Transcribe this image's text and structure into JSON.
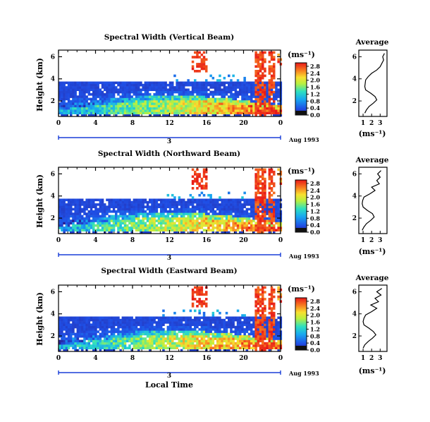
{
  "chart_data": [
    {
      "type": "heatmap",
      "title": "Spectral Width (Vertical Beam)",
      "ylabel": "Height (km)",
      "xlabel": "",
      "x_ticks": [
        "0",
        "4",
        "8",
        "12",
        "16",
        "20",
        "0"
      ],
      "y_ticks": [
        "2",
        "4",
        "6"
      ],
      "x_range_hours": [
        0,
        24
      ],
      "y_range_km": [
        0.6,
        6.6
      ],
      "day_marker": "3",
      "date_label": "Aug 1993",
      "colorbar": {
        "unit": "(ms⁻¹)",
        "ticks": [
          "0.0",
          "0.4",
          "0.8",
          "1.2",
          "1.6",
          "2.0",
          "2.4",
          "2.8"
        ],
        "range": [
          0,
          3.0
        ]
      },
      "average_profile": {
        "title": "Average",
        "xlabel": "(ms⁻¹)",
        "x_ticks": [
          "1",
          "2",
          "3"
        ],
        "x_range": [
          0.5,
          3.8
        ],
        "heights_km": [
          0.9,
          1.2,
          1.5,
          1.8,
          2.1,
          2.4,
          2.7,
          3.0,
          3.3,
          3.6,
          3.9,
          4.2,
          4.5,
          4.8,
          5.1,
          5.4,
          5.7,
          6.0,
          6.3
        ],
        "values": [
          1.2,
          1.4,
          1.7,
          2.2,
          2.6,
          2.4,
          1.9,
          1.3,
          1.2,
          1.25,
          1.3,
          1.6,
          2.0,
          2.6,
          3.0,
          3.2,
          3.4,
          3.3,
          3.5
        ]
      }
    },
    {
      "type": "heatmap",
      "title": "Spectral Width (Northward Beam)",
      "ylabel": "Height (km)",
      "xlabel": "",
      "x_ticks": [
        "0",
        "4",
        "8",
        "12",
        "16",
        "20",
        "0"
      ],
      "y_ticks": [
        "2",
        "4",
        "6"
      ],
      "x_range_hours": [
        0,
        24
      ],
      "y_range_km": [
        0.6,
        6.6
      ],
      "day_marker": "3",
      "date_label": "Aug 1993",
      "colorbar": {
        "unit": "(ms⁻¹)",
        "ticks": [
          "0.0",
          "0.4",
          "0.8",
          "1.2",
          "1.6",
          "2.0",
          "2.4",
          "2.8"
        ],
        "range": [
          0,
          3.0
        ]
      },
      "average_profile": {
        "title": "Average",
        "xlabel": "(ms⁻¹)",
        "x_ticks": [
          "1",
          "2",
          "3"
        ],
        "x_range": [
          0.5,
          3.8
        ],
        "heights_km": [
          0.9,
          1.2,
          1.5,
          1.8,
          2.1,
          2.4,
          2.7,
          3.0,
          3.3,
          3.6,
          3.9,
          4.2,
          4.5,
          4.8,
          5.1,
          5.4,
          5.7,
          6.0,
          6.3
        ],
        "values": [
          0.9,
          1.1,
          1.4,
          1.9,
          2.3,
          2.1,
          1.5,
          1.0,
          0.9,
          0.95,
          1.1,
          1.8,
          2.4,
          2.0,
          2.9,
          2.6,
          3.0,
          2.7,
          3.1
        ]
      }
    },
    {
      "type": "heatmap",
      "title": "Spectral Width (Eastward Beam)",
      "ylabel": "Height (km)",
      "xlabel": "Local Time",
      "x_ticks": [
        "0",
        "4",
        "8",
        "12",
        "16",
        "20",
        "0"
      ],
      "y_ticks": [
        "2",
        "4",
        "6"
      ],
      "x_range_hours": [
        0,
        24
      ],
      "y_range_km": [
        0.6,
        6.6
      ],
      "day_marker": "3",
      "date_label": "Aug 1993",
      "colorbar": {
        "unit": "(ms⁻¹)",
        "ticks": [
          "0.0",
          "0.4",
          "0.8",
          "1.2",
          "1.6",
          "2.0",
          "2.4",
          "2.8"
        ],
        "range": [
          0,
          3.0
        ]
      },
      "average_profile": {
        "title": "Average",
        "xlabel": "(ms⁻¹)",
        "x_ticks": [
          "1",
          "2",
          "3"
        ],
        "x_range": [
          0.5,
          3.8
        ],
        "heights_km": [
          0.9,
          1.2,
          1.5,
          1.8,
          2.1,
          2.4,
          2.7,
          3.0,
          3.3,
          3.6,
          3.9,
          4.2,
          4.5,
          4.8,
          5.1,
          5.4,
          5.7,
          6.0,
          6.3
        ],
        "values": [
          1.0,
          1.2,
          1.6,
          2.1,
          2.5,
          2.2,
          1.7,
          1.1,
          1.0,
          1.1,
          1.3,
          2.0,
          2.6,
          1.9,
          2.8,
          2.4,
          3.1,
          2.6,
          3.2
        ]
      }
    }
  ]
}
